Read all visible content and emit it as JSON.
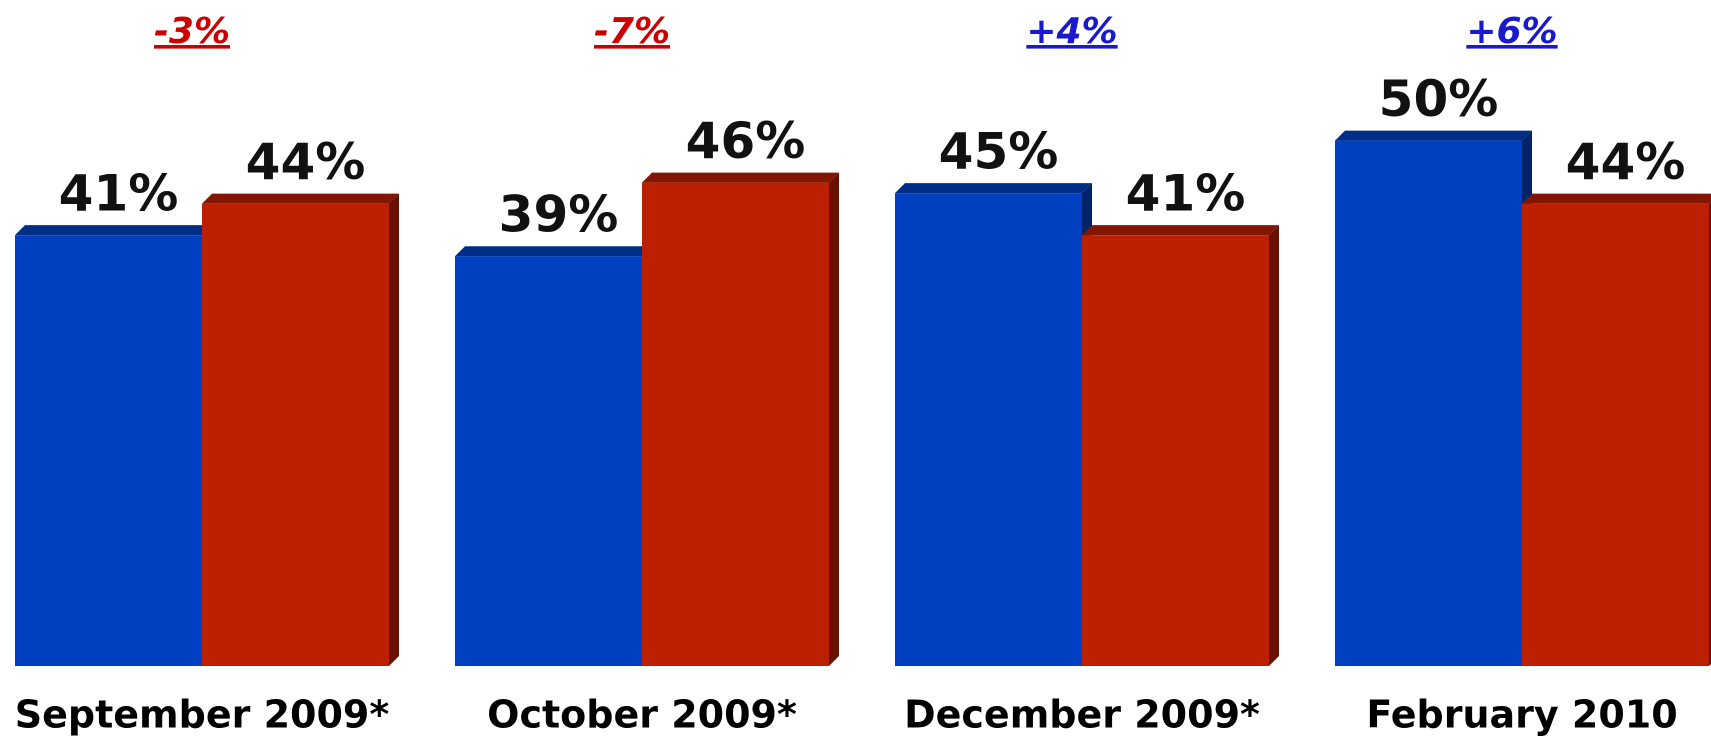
{
  "chart_data": {
    "type": "bar",
    "categories": [
      "September 2009*",
      "October 2009*",
      "December 2009*",
      "February 2010"
    ],
    "series": [
      {
        "color": "#0040c0",
        "values": [
          41,
          39,
          45,
          50
        ],
        "value_labels": [
          "41%",
          "39%",
          "45%",
          "50%"
        ]
      },
      {
        "color": "#bb2000",
        "values": [
          44,
          46,
          41,
          44
        ],
        "value_labels": [
          "44%",
          "46%",
          "41%",
          "44%"
        ]
      }
    ],
    "annotations": [
      {
        "text": "-3%",
        "color": "#cc0000"
      },
      {
        "text": "-7%",
        "color": "#cc0000"
      },
      {
        "text": "+4%",
        "color": "#1a1acc"
      },
      {
        "text": "+6%",
        "color": "#1a1acc"
      }
    ],
    "ylim": [
      0,
      63
    ]
  }
}
